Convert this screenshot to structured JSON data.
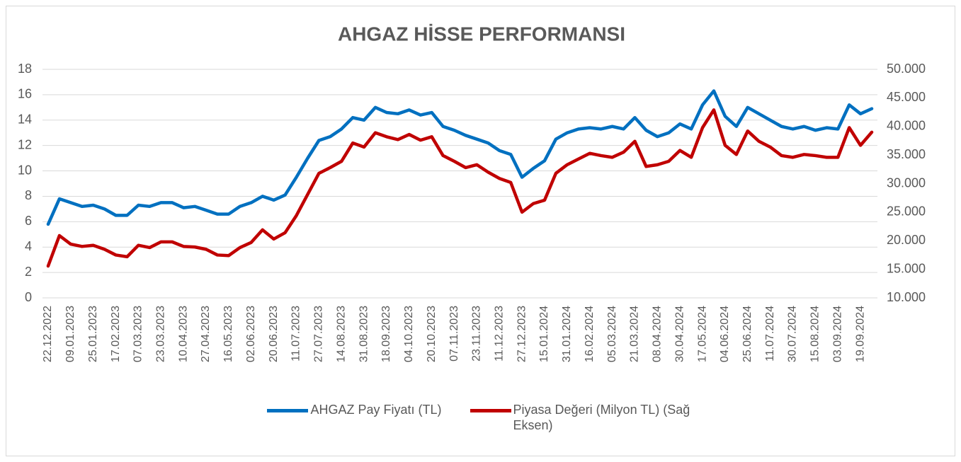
{
  "chart_data": {
    "type": "line",
    "title": "AHGAZ HİSSE PERFORMANSI",
    "categories": [
      "22.12.2022",
      null,
      "09.01.2023",
      null,
      "25.01.2023",
      null,
      "17.02.2023",
      null,
      "07.03.2023",
      null,
      "23.03.2023",
      null,
      "10.04.2023",
      null,
      "27.04.2023",
      null,
      "16.05.2023",
      null,
      "02.06.2023",
      null,
      "20.06.2023",
      null,
      "11.07.2023",
      null,
      "27.07.2023",
      null,
      "14.08.2023",
      null,
      "31.08.2023",
      null,
      "18.09.2023",
      null,
      "04.10.2023",
      null,
      "20.10.2023",
      null,
      "07.11.2023",
      null,
      "23.11.2023",
      null,
      "11.12.2023",
      null,
      "27.12.2023",
      null,
      "15.01.2024",
      null,
      "31.01.2024",
      null,
      "16.02.2024",
      null,
      "05.03.2024",
      null,
      "21.03.2024",
      null,
      "08.04.2024",
      null,
      "30.04.2024",
      null,
      "17.05.2024",
      null,
      "04.06.2024",
      null,
      "25.06.2024",
      null,
      "11.07.2024",
      null,
      "30.07.2024",
      null,
      "15.08.2024",
      null,
      "03.09.2024",
      null,
      "19.09.2024",
      null
    ],
    "series": [
      {
        "name": "AHGAZ Pay Fiyatı (TL)",
        "color": "#0070C0",
        "values": [
          5.8,
          7.8,
          7.5,
          7.2,
          7.3,
          7.0,
          6.5,
          6.5,
          7.3,
          7.2,
          7.5,
          7.5,
          7.1,
          7.2,
          6.9,
          6.6,
          6.6,
          7.2,
          7.5,
          8.0,
          7.7,
          8.1,
          9.5,
          11.0,
          12.4,
          12.7,
          13.3,
          14.2,
          14.0,
          15.0,
          14.6,
          14.5,
          14.8,
          14.4,
          14.6,
          13.5,
          13.2,
          12.8,
          12.5,
          12.2,
          11.6,
          11.3,
          9.5,
          10.2,
          10.8,
          12.5,
          13.0,
          13.3,
          13.4,
          13.3,
          13.5,
          13.3,
          14.2,
          13.2,
          12.7,
          13.0,
          13.7,
          13.3,
          15.2,
          16.3,
          14.3,
          13.5,
          15.0,
          14.5,
          14.0,
          13.5,
          13.3,
          13.5,
          13.2,
          13.4,
          13.3,
          15.2,
          14.5,
          14.9
        ]
      },
      {
        "name": "Piyasa Değeri (Milyon TL) (Sağ Eksen)",
        "color": "#C00000",
        "axis": "y2",
        "values": [
          15570,
          20900,
          19400,
          19000,
          19200,
          18500,
          17500,
          17200,
          19200,
          18800,
          19800,
          19800,
          19000,
          18900,
          18500,
          17500,
          17400,
          18800,
          19700,
          21900,
          20300,
          21400,
          24400,
          28100,
          31800,
          32800,
          33900,
          37100,
          36400,
          38900,
          38200,
          37700,
          38600,
          37600,
          38200,
          34900,
          33900,
          32800,
          33300,
          32000,
          30900,
          30200,
          25000,
          26500,
          27100,
          31800,
          33300,
          34300,
          35300,
          34900,
          34600,
          35500,
          37400,
          33000,
          33300,
          33900,
          35800,
          34600,
          39800,
          42900,
          36700,
          35100,
          39200,
          37400,
          36400,
          34900,
          34600,
          35100,
          34900,
          34600,
          34600,
          39800,
          36700,
          39000
        ]
      }
    ],
    "ylim": [
      0,
      18
    ],
    "yticks": [
      0,
      2,
      4,
      6,
      8,
      10,
      12,
      14,
      16,
      18
    ],
    "y2lim": [
      10000,
      50000
    ],
    "y2ticks": [
      {
        "value": 10000,
        "label": "10.000"
      },
      {
        "value": 15000,
        "label": "15.000"
      },
      {
        "value": 20000,
        "label": "20.000"
      },
      {
        "value": 25000,
        "label": "25.000"
      },
      {
        "value": 30000,
        "label": "30.000"
      },
      {
        "value": 35000,
        "label": "35.000"
      },
      {
        "value": 40000,
        "label": "40.000"
      },
      {
        "value": 45000,
        "label": "45.000"
      },
      {
        "value": 50000,
        "label": "50.000"
      }
    ],
    "grid": true,
    "legend": "bottom"
  }
}
